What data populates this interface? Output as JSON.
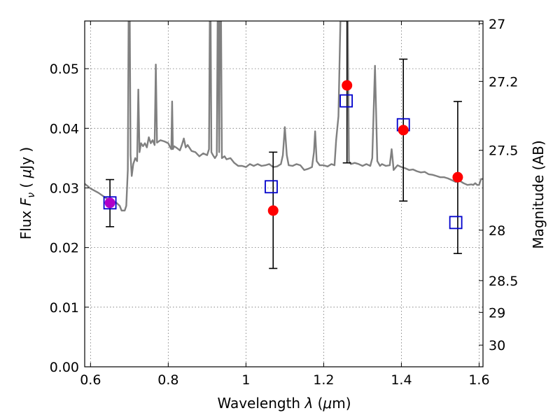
{
  "chart_data": {
    "type": "scatter",
    "x_axis": {
      "label_prefix": "Wavelength  ",
      "label_symbol": "λ",
      "label_unit_open": " (",
      "label_unit_mu": "μ",
      "label_unit_close": "m)",
      "range": [
        0.585,
        1.61
      ],
      "ticks": [
        {
          "value": 0.6,
          "label": "0.6"
        },
        {
          "value": 0.8,
          "label": "0.8"
        },
        {
          "value": 1.0,
          "label": "1"
        },
        {
          "value": 1.2,
          "label": "1.2"
        },
        {
          "value": 1.4,
          "label": "1.4"
        },
        {
          "value": 1.6,
          "label": "1.6"
        }
      ]
    },
    "y_axis_left": {
      "label_prefix": "Flux  ",
      "label_symbol": "F",
      "label_subscript": "ν",
      "label_unit_open": "  ( ",
      "label_unit_mu": "μ",
      "label_unit_close": "Jy )",
      "range": [
        0.0,
        0.058
      ],
      "ticks": [
        {
          "value": 0.0,
          "label": "0.00"
        },
        {
          "value": 0.01,
          "label": "0.01"
        },
        {
          "value": 0.02,
          "label": "0.02"
        },
        {
          "value": 0.03,
          "label": "0.03"
        },
        {
          "value": 0.04,
          "label": "0.04"
        },
        {
          "value": 0.05,
          "label": "0.05"
        }
      ]
    },
    "y_axis_right": {
      "label": "Magnitude (AB)",
      "ticks": [
        {
          "value": 27,
          "label": "27"
        },
        {
          "value": 27.2,
          "label": "27.2"
        },
        {
          "value": 27.5,
          "label": "27.5"
        },
        {
          "value": 28,
          "label": "28"
        },
        {
          "value": 28.5,
          "label": "28.5"
        },
        {
          "value": 29,
          "label": "29"
        },
        {
          "value": 30,
          "label": "30"
        }
      ]
    },
    "grid": true,
    "series": [
      {
        "kind": "spectrum-line",
        "color": "#808080",
        "points": [
          [
            0.585,
            0.0307
          ],
          [
            0.6,
            0.0299
          ],
          [
            0.62,
            0.0292
          ],
          [
            0.64,
            0.0283
          ],
          [
            0.655,
            0.0277
          ],
          [
            0.665,
            0.0276
          ],
          [
            0.675,
            0.027
          ],
          [
            0.68,
            0.0262
          ],
          [
            0.688,
            0.0262
          ],
          [
            0.692,
            0.027
          ],
          [
            0.696,
            0.033
          ],
          [
            0.698,
            0.058
          ],
          [
            0.701,
            0.058
          ],
          [
            0.703,
            0.0355
          ],
          [
            0.706,
            0.032
          ],
          [
            0.71,
            0.034
          ],
          [
            0.715,
            0.035
          ],
          [
            0.72,
            0.0345
          ],
          [
            0.723,
            0.0465
          ],
          [
            0.726,
            0.036
          ],
          [
            0.73,
            0.0375
          ],
          [
            0.735,
            0.037
          ],
          [
            0.74,
            0.0375
          ],
          [
            0.745,
            0.0368
          ],
          [
            0.75,
            0.0385
          ],
          [
            0.755,
            0.0375
          ],
          [
            0.76,
            0.038
          ],
          [
            0.765,
            0.0372
          ],
          [
            0.768,
            0.0507
          ],
          [
            0.771,
            0.0376
          ],
          [
            0.78,
            0.038
          ],
          [
            0.79,
            0.0378
          ],
          [
            0.8,
            0.0375
          ],
          [
            0.805,
            0.0368
          ],
          [
            0.808,
            0.0365
          ],
          [
            0.81,
            0.0445
          ],
          [
            0.812,
            0.0365
          ],
          [
            0.815,
            0.037
          ],
          [
            0.82,
            0.0368
          ],
          [
            0.83,
            0.0363
          ],
          [
            0.835,
            0.0372
          ],
          [
            0.84,
            0.0383
          ],
          [
            0.845,
            0.0368
          ],
          [
            0.85,
            0.0372
          ],
          [
            0.86,
            0.0362
          ],
          [
            0.87,
            0.036
          ],
          [
            0.88,
            0.0353
          ],
          [
            0.89,
            0.0358
          ],
          [
            0.9,
            0.0355
          ],
          [
            0.905,
            0.0365
          ],
          [
            0.907,
            0.058
          ],
          [
            0.909,
            0.058
          ],
          [
            0.911,
            0.036
          ],
          [
            0.915,
            0.0355
          ],
          [
            0.92,
            0.035
          ],
          [
            0.925,
            0.0355
          ],
          [
            0.927,
            0.058
          ],
          [
            0.929,
            0.058
          ],
          [
            0.931,
            0.036
          ],
          [
            0.933,
            0.058
          ],
          [
            0.936,
            0.058
          ],
          [
            0.938,
            0.035
          ],
          [
            0.945,
            0.0353
          ],
          [
            0.95,
            0.0348
          ],
          [
            0.96,
            0.035
          ],
          [
            0.97,
            0.0342
          ],
          [
            0.98,
            0.0337
          ],
          [
            0.99,
            0.0337
          ],
          [
            1.0,
            0.0335
          ],
          [
            1.01,
            0.034
          ],
          [
            1.02,
            0.0337
          ],
          [
            1.03,
            0.034
          ],
          [
            1.04,
            0.0337
          ],
          [
            1.05,
            0.0338
          ],
          [
            1.06,
            0.034
          ],
          [
            1.07,
            0.0335
          ],
          [
            1.08,
            0.0336
          ],
          [
            1.09,
            0.034
          ],
          [
            1.095,
            0.0355
          ],
          [
            1.1,
            0.0402
          ],
          [
            1.105,
            0.0355
          ],
          [
            1.11,
            0.0338
          ],
          [
            1.12,
            0.0337
          ],
          [
            1.13,
            0.034
          ],
          [
            1.14,
            0.0338
          ],
          [
            1.15,
            0.033
          ],
          [
            1.16,
            0.0332
          ],
          [
            1.17,
            0.0335
          ],
          [
            1.175,
            0.036
          ],
          [
            1.178,
            0.0395
          ],
          [
            1.182,
            0.0345
          ],
          [
            1.19,
            0.0338
          ],
          [
            1.2,
            0.0338
          ],
          [
            1.21,
            0.0336
          ],
          [
            1.22,
            0.034
          ],
          [
            1.228,
            0.0338
          ],
          [
            1.232,
            0.038
          ],
          [
            1.238,
            0.042
          ],
          [
            1.243,
            0.058
          ],
          [
            1.262,
            0.058
          ],
          [
            1.265,
            0.0345
          ],
          [
            1.27,
            0.034
          ],
          [
            1.28,
            0.0342
          ],
          [
            1.29,
            0.034
          ],
          [
            1.3,
            0.0337
          ],
          [
            1.31,
            0.034
          ],
          [
            1.32,
            0.0337
          ],
          [
            1.325,
            0.035
          ],
          [
            1.332,
            0.0505
          ],
          [
            1.338,
            0.0345
          ],
          [
            1.345,
            0.0337
          ],
          [
            1.35,
            0.034
          ],
          [
            1.36,
            0.0337
          ],
          [
            1.37,
            0.0338
          ],
          [
            1.375,
            0.0365
          ],
          [
            1.378,
            0.0345
          ],
          [
            1.38,
            0.033
          ],
          [
            1.39,
            0.0338
          ],
          [
            1.4,
            0.0335
          ],
          [
            1.41,
            0.0333
          ],
          [
            1.42,
            0.033
          ],
          [
            1.43,
            0.0331
          ],
          [
            1.44,
            0.0328
          ],
          [
            1.45,
            0.0326
          ],
          [
            1.46,
            0.0327
          ],
          [
            1.47,
            0.0323
          ],
          [
            1.48,
            0.0322
          ],
          [
            1.49,
            0.032
          ],
          [
            1.5,
            0.0318
          ],
          [
            1.51,
            0.0318
          ],
          [
            1.52,
            0.0316
          ],
          [
            1.53,
            0.0313
          ],
          [
            1.54,
            0.031
          ],
          [
            1.55,
            0.0312
          ],
          [
            1.56,
            0.0308
          ],
          [
            1.57,
            0.0305
          ],
          [
            1.58,
            0.0306
          ],
          [
            1.585,
            0.0305
          ],
          [
            1.59,
            0.0308
          ],
          [
            1.595,
            0.0305
          ],
          [
            1.6,
            0.0305
          ],
          [
            1.605,
            0.0315
          ],
          [
            1.61,
            0.0315
          ]
        ]
      },
      {
        "kind": "measurements-with-errorbars",
        "marker": "circle",
        "color": "#ff0000",
        "points": [
          {
            "x": 0.65,
            "y": 0.0275,
            "err_low": 0.0235,
            "err_high": 0.0314
          },
          {
            "x": 1.07,
            "y": 0.0262,
            "err_low": 0.0165,
            "err_high": 0.036
          },
          {
            "x": 1.26,
            "y": 0.0472,
            "err_low": 0.0342,
            "err_high": 0.058
          },
          {
            "x": 1.405,
            "y": 0.0397,
            "err_low": 0.0278,
            "err_high": 0.0516
          },
          {
            "x": 1.545,
            "y": 0.0318,
            "err_low": 0.019,
            "err_high": 0.0445
          }
        ]
      },
      {
        "kind": "model-photometry",
        "marker": "open-square",
        "color": "#0000cc",
        "points": [
          {
            "x": 0.65,
            "y": 0.0275
          },
          {
            "x": 1.065,
            "y": 0.0302
          },
          {
            "x": 1.258,
            "y": 0.0446
          },
          {
            "x": 1.405,
            "y": 0.0406
          },
          {
            "x": 1.54,
            "y": 0.0242
          }
        ]
      }
    ]
  }
}
